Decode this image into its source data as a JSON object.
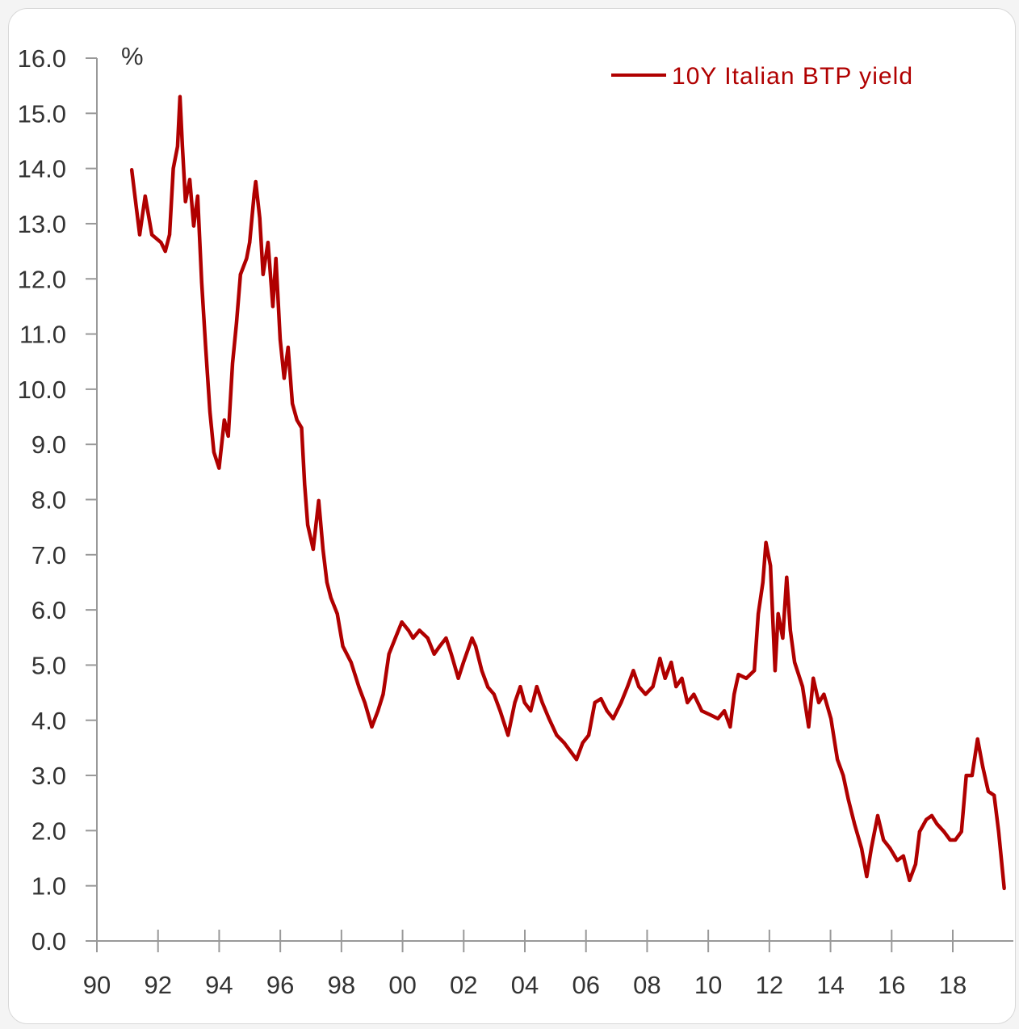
{
  "chart_data": {
    "type": "line",
    "title": "",
    "ylabel": "%",
    "xlabel": "",
    "xlim": [
      1990,
      2020
    ],
    "ylim": [
      0,
      16
    ],
    "grid": false,
    "legend_position": "top-right",
    "y_ticks": [
      "0.0",
      "1.0",
      "2.0",
      "3.0",
      "4.0",
      "5.0",
      "6.0",
      "7.0",
      "8.0",
      "9.0",
      "10.0",
      "11.0",
      "12.0",
      "13.0",
      "14.0",
      "15.0",
      "16.0"
    ],
    "x_ticks": [
      "90",
      "92",
      "94",
      "96",
      "98",
      "00",
      "02",
      "04",
      "06",
      "08",
      "10",
      "12",
      "14",
      "16",
      "18"
    ],
    "series": [
      {
        "name": "10Y Italian BTP yield",
        "color": "#b00000",
        "x": [
          1991.14,
          1991.3,
          1991.4,
          1991.58,
          1991.8,
          1992.1,
          1992.24,
          1992.38,
          1992.5,
          1992.64,
          1992.72,
          1992.8,
          1992.9,
          1993.04,
          1993.17,
          1993.3,
          1993.43,
          1993.56,
          1993.7,
          1993.83,
          1994.0,
          1994.17,
          1994.3,
          1994.44,
          1994.57,
          1994.7,
          1994.9,
          1995.0,
          1995.15,
          1995.2,
          1995.33,
          1995.44,
          1995.6,
          1995.76,
          1995.86,
          1996.0,
          1996.13,
          1996.26,
          1996.4,
          1996.55,
          1996.7,
          1996.8,
          1996.9,
          1997.08,
          1997.26,
          1997.4,
          1997.53,
          1997.66,
          1997.87,
          1998.05,
          1998.32,
          1998.58,
          1998.77,
          1999.0,
          1999.2,
          1999.37,
          1999.56,
          1999.77,
          1999.98,
          2000.2,
          2000.35,
          2000.56,
          2000.83,
          2001.04,
          2001.22,
          2001.43,
          2001.6,
          2001.83,
          2002.0,
          2002.28,
          2002.4,
          2002.6,
          2002.8,
          2003.0,
          2003.2,
          2003.46,
          2003.68,
          2003.86,
          2004.0,
          2004.2,
          2004.4,
          2004.58,
          2004.8,
          2005.05,
          2005.3,
          2005.5,
          2005.7,
          2005.9,
          2006.1,
          2006.3,
          2006.5,
          2006.7,
          2006.9,
          2007.16,
          2007.37,
          2007.56,
          2007.74,
          2007.96,
          2008.2,
          2008.43,
          2008.6,
          2008.8,
          2008.96,
          2009.15,
          2009.33,
          2009.54,
          2009.8,
          2010.07,
          2010.33,
          2010.54,
          2010.73,
          2010.86,
          2011.0,
          2011.26,
          2011.52,
          2011.65,
          2011.8,
          2011.9,
          2012.05,
          2012.2,
          2012.3,
          2012.45,
          2012.58,
          2012.7,
          2012.84,
          2013.1,
          2013.3,
          2013.45,
          2013.63,
          2013.8,
          2014.03,
          2014.24,
          2014.43,
          2014.6,
          2014.8,
          2015.03,
          2015.2,
          2015.35,
          2015.56,
          2015.75,
          2015.96,
          2016.2,
          2016.4,
          2016.6,
          2016.8,
          2016.93,
          2017.15,
          2017.33,
          2017.5,
          2017.73,
          2017.93,
          2018.1,
          2018.3,
          2018.46,
          2018.65,
          2018.83,
          2019.0,
          2019.18,
          2019.37,
          2019.52,
          2019.7
        ],
        "y": [
          13.98,
          13.25,
          12.8,
          13.5,
          12.8,
          12.66,
          12.5,
          12.8,
          14.0,
          14.4,
          15.3,
          14.4,
          13.4,
          13.8,
          12.96,
          13.5,
          11.93,
          10.76,
          9.59,
          8.86,
          8.57,
          9.44,
          9.15,
          10.47,
          11.2,
          12.08,
          12.37,
          12.66,
          13.54,
          13.76,
          13.1,
          12.08,
          12.66,
          11.5,
          12.37,
          10.9,
          10.2,
          10.76,
          9.74,
          9.44,
          9.3,
          8.27,
          7.54,
          7.1,
          7.98,
          7.1,
          6.5,
          6.22,
          5.93,
          5.34,
          5.05,
          4.6,
          4.32,
          3.88,
          4.17,
          4.47,
          5.2,
          5.49,
          5.78,
          5.63,
          5.49,
          5.63,
          5.49,
          5.2,
          5.34,
          5.49,
          5.2,
          4.76,
          5.05,
          5.49,
          5.34,
          4.9,
          4.6,
          4.47,
          4.17,
          3.73,
          4.32,
          4.61,
          4.32,
          4.17,
          4.61,
          4.32,
          4.03,
          3.73,
          3.59,
          3.44,
          3.29,
          3.59,
          3.73,
          4.32,
          4.39,
          4.17,
          4.03,
          4.32,
          4.61,
          4.9,
          4.61,
          4.47,
          4.61,
          5.12,
          4.76,
          5.05,
          4.61,
          4.76,
          4.32,
          4.47,
          4.17,
          4.1,
          4.03,
          4.17,
          3.88,
          4.47,
          4.83,
          4.76,
          4.9,
          5.93,
          6.5,
          7.22,
          6.8,
          4.9,
          5.93,
          5.49,
          6.59,
          5.63,
          5.05,
          4.61,
          3.88,
          4.76,
          4.32,
          4.47,
          4.03,
          3.29,
          3.0,
          2.56,
          2.12,
          1.68,
          1.17,
          1.68,
          2.27,
          1.83,
          1.68,
          1.46,
          1.54,
          1.1,
          1.39,
          1.98,
          2.2,
          2.27,
          2.12,
          1.98,
          1.83,
          1.83,
          1.98,
          3.0,
          3.0,
          3.66,
          3.15,
          2.71,
          2.64,
          1.98,
          0.95
        ]
      }
    ]
  }
}
